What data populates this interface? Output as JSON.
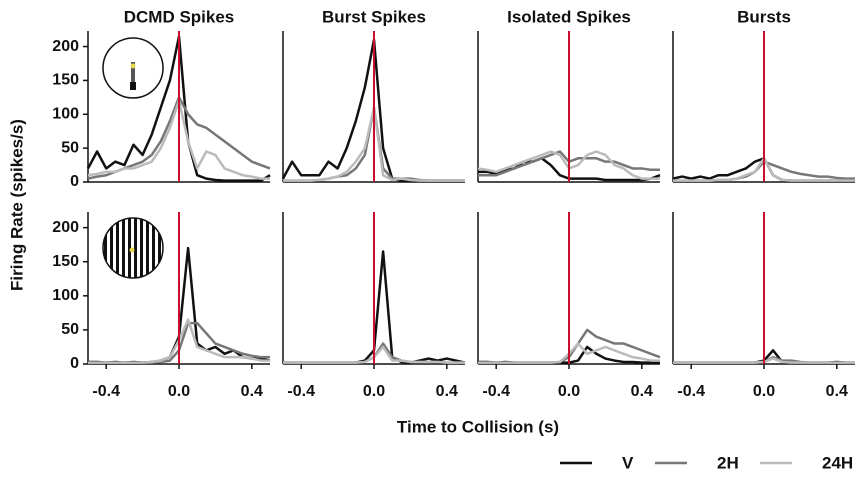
{
  "figure": {
    "ylabel": "Firing Rate (spikes/s)",
    "xlabel": "Time to Collision (s)"
  },
  "chart_data": [
    {
      "type": "line",
      "title": "DCMD Spikes",
      "x": [
        -0.5,
        -0.45,
        -0.4,
        -0.35,
        -0.3,
        -0.25,
        -0.2,
        -0.15,
        -0.1,
        -0.05,
        0,
        0.05,
        0.1,
        0.15,
        0.2,
        0.25,
        0.3,
        0.35,
        0.4,
        0.45,
        0.5
      ],
      "xlim": [
        -0.5,
        0.5
      ],
      "ylim": [
        0,
        220
      ],
      "yticks": [
        0,
        50,
        100,
        150,
        200
      ],
      "vline": 0,
      "vline_color": "#c8102e",
      "series": [
        {
          "name": "V",
          "color": "#111111",
          "values": [
            20,
            45,
            20,
            30,
            25,
            55,
            40,
            70,
            110,
            150,
            215,
            60,
            10,
            5,
            3,
            2,
            2,
            2,
            2,
            2,
            10
          ]
        },
        {
          "name": "2H",
          "color": "#777777",
          "values": [
            5,
            8,
            10,
            15,
            20,
            25,
            30,
            40,
            60,
            90,
            125,
            100,
            85,
            80,
            70,
            60,
            50,
            40,
            30,
            25,
            20
          ]
        },
        {
          "name": "24H",
          "color": "#bbbbbb",
          "values": [
            10,
            12,
            15,
            15,
            20,
            20,
            25,
            30,
            50,
            80,
            120,
            60,
            20,
            45,
            40,
            20,
            15,
            10,
            8,
            5,
            5
          ]
        }
      ]
    },
    {
      "type": "line",
      "title": "Burst Spikes",
      "x": [
        -0.5,
        -0.45,
        -0.4,
        -0.35,
        -0.3,
        -0.25,
        -0.2,
        -0.15,
        -0.1,
        -0.05,
        0,
        0.05,
        0.1,
        0.15,
        0.2,
        0.25,
        0.3,
        0.35,
        0.4,
        0.45,
        0.5
      ],
      "xlim": [
        -0.5,
        0.5
      ],
      "ylim": [
        0,
        220
      ],
      "vline": 0,
      "vline_color": "#c8102e",
      "series": [
        {
          "name": "V",
          "color": "#111111",
          "values": [
            5,
            30,
            10,
            10,
            10,
            30,
            20,
            50,
            90,
            140,
            210,
            50,
            5,
            2,
            2,
            2,
            2,
            2,
            2,
            2,
            2
          ]
        },
        {
          "name": "2H",
          "color": "#777777",
          "values": [
            2,
            2,
            2,
            2,
            3,
            5,
            8,
            10,
            20,
            40,
            110,
            20,
            5,
            5,
            5,
            3,
            2,
            2,
            2,
            2,
            2
          ]
        },
        {
          "name": "24H",
          "color": "#bbbbbb",
          "values": [
            2,
            2,
            2,
            2,
            3,
            5,
            8,
            15,
            30,
            50,
            110,
            10,
            3,
            5,
            3,
            2,
            2,
            2,
            2,
            2,
            2
          ]
        }
      ]
    },
    {
      "type": "line",
      "title": "Isolated Spikes",
      "x": [
        -0.5,
        -0.45,
        -0.4,
        -0.35,
        -0.3,
        -0.25,
        -0.2,
        -0.15,
        -0.1,
        -0.05,
        0,
        0.05,
        0.1,
        0.15,
        0.2,
        0.25,
        0.3,
        0.35,
        0.4,
        0.45,
        0.5
      ],
      "xlim": [
        -0.5,
        0.5
      ],
      "ylim": [
        0,
        220
      ],
      "vline": 0,
      "vline_color": "#c8102e",
      "series": [
        {
          "name": "V",
          "color": "#111111",
          "values": [
            15,
            15,
            12,
            18,
            20,
            30,
            30,
            35,
            25,
            10,
            5,
            5,
            5,
            5,
            3,
            3,
            3,
            3,
            3,
            5,
            10
          ]
        },
        {
          "name": "2H",
          "color": "#777777",
          "values": [
            10,
            10,
            10,
            15,
            20,
            25,
            30,
            35,
            40,
            45,
            30,
            35,
            35,
            35,
            30,
            30,
            25,
            20,
            20,
            18,
            18
          ]
        },
        {
          "name": "24H",
          "color": "#bbbbbb",
          "values": [
            20,
            18,
            15,
            20,
            25,
            30,
            35,
            40,
            45,
            40,
            20,
            25,
            40,
            45,
            40,
            25,
            20,
            10,
            5,
            5,
            5
          ]
        }
      ]
    },
    {
      "type": "line",
      "title": "Bursts",
      "x": [
        -0.5,
        -0.45,
        -0.4,
        -0.35,
        -0.3,
        -0.25,
        -0.2,
        -0.15,
        -0.1,
        -0.05,
        0,
        0.05,
        0.1,
        0.15,
        0.2,
        0.25,
        0.3,
        0.35,
        0.4,
        0.45,
        0.5
      ],
      "xlim": [
        -0.5,
        0.5
      ],
      "ylim": [
        0,
        220
      ],
      "vline": 0,
      "vline_color": "#c8102e",
      "series": [
        {
          "name": "V",
          "color": "#111111",
          "values": [
            5,
            8,
            5,
            8,
            5,
            10,
            10,
            15,
            20,
            30,
            35,
            10,
            3,
            2,
            2,
            2,
            2,
            2,
            2,
            2,
            2
          ]
        },
        {
          "name": "2H",
          "color": "#777777",
          "values": [
            2,
            2,
            2,
            2,
            2,
            3,
            3,
            5,
            8,
            15,
            30,
            25,
            20,
            15,
            12,
            10,
            8,
            8,
            6,
            5,
            5
          ]
        },
        {
          "name": "24H",
          "color": "#bbbbbb",
          "values": [
            2,
            2,
            2,
            2,
            2,
            3,
            3,
            5,
            10,
            15,
            35,
            10,
            3,
            2,
            2,
            2,
            2,
            2,
            2,
            2,
            2
          ]
        }
      ]
    },
    {
      "type": "line",
      "x": [
        -0.5,
        -0.45,
        -0.4,
        -0.35,
        -0.3,
        -0.25,
        -0.2,
        -0.15,
        -0.1,
        -0.05,
        0,
        0.05,
        0.1,
        0.15,
        0.2,
        0.25,
        0.3,
        0.35,
        0.4,
        0.45,
        0.5
      ],
      "xlim": [
        -0.5,
        0.5
      ],
      "ylim": [
        0,
        220
      ],
      "yticks": [
        0,
        50,
        100,
        150,
        200
      ],
      "xticks": [
        -0.4,
        {
          "value": 0,
          "label": "0.0"
        },
        0.4
      ],
      "vline": 0,
      "vline_color": "#c8102e",
      "series": [
        {
          "name": "V",
          "color": "#111111",
          "values": [
            3,
            3,
            2,
            3,
            2,
            3,
            2,
            3,
            5,
            10,
            40,
            170,
            30,
            20,
            25,
            15,
            20,
            10,
            8,
            8,
            5
          ]
        },
        {
          "name": "2H",
          "color": "#777777",
          "values": [
            2,
            2,
            2,
            2,
            2,
            2,
            2,
            2,
            3,
            5,
            20,
            60,
            60,
            45,
            30,
            25,
            20,
            15,
            12,
            10,
            10
          ]
        },
        {
          "name": "24H",
          "color": "#bbbbbb",
          "values": [
            2,
            2,
            2,
            2,
            2,
            2,
            2,
            3,
            5,
            10,
            35,
            65,
            25,
            20,
            15,
            10,
            10,
            10,
            8,
            5,
            5
          ]
        }
      ]
    },
    {
      "type": "line",
      "x": [
        -0.5,
        -0.45,
        -0.4,
        -0.35,
        -0.3,
        -0.25,
        -0.2,
        -0.15,
        -0.1,
        -0.05,
        0,
        0.05,
        0.1,
        0.15,
        0.2,
        0.25,
        0.3,
        0.35,
        0.4,
        0.45,
        0.5
      ],
      "xlim": [
        -0.5,
        0.5
      ],
      "ylim": [
        0,
        220
      ],
      "xticks": [
        -0.4,
        {
          "value": 0,
          "label": "0.0"
        },
        0.4
      ],
      "vline": 0,
      "vline_color": "#c8102e",
      "series": [
        {
          "name": "V",
          "color": "#111111",
          "values": [
            2,
            2,
            2,
            2,
            2,
            2,
            2,
            2,
            2,
            5,
            20,
            165,
            10,
            3,
            2,
            5,
            8,
            5,
            8,
            5,
            2
          ]
        },
        {
          "name": "2H",
          "color": "#777777",
          "values": [
            2,
            2,
            2,
            2,
            2,
            2,
            2,
            2,
            2,
            3,
            10,
            30,
            10,
            5,
            3,
            3,
            3,
            3,
            2,
            2,
            2
          ]
        },
        {
          "name": "24H",
          "color": "#bbbbbb",
          "values": [
            2,
            2,
            2,
            2,
            2,
            2,
            2,
            2,
            2,
            3,
            10,
            25,
            5,
            5,
            3,
            3,
            3,
            3,
            2,
            2,
            2
          ]
        }
      ]
    },
    {
      "type": "line",
      "x": [
        -0.5,
        -0.45,
        -0.4,
        -0.35,
        -0.3,
        -0.25,
        -0.2,
        -0.15,
        -0.1,
        -0.05,
        0,
        0.05,
        0.1,
        0.15,
        0.2,
        0.25,
        0.3,
        0.35,
        0.4,
        0.45,
        0.5
      ],
      "xlim": [
        -0.5,
        0.5
      ],
      "ylim": [
        0,
        220
      ],
      "xticks": [
        -0.4,
        {
          "value": 0,
          "label": "0.0"
        },
        0.4
      ],
      "vline": 0,
      "vline_color": "#c8102e",
      "series": [
        {
          "name": "V",
          "color": "#111111",
          "values": [
            3,
            3,
            2,
            3,
            2,
            2,
            2,
            2,
            2,
            2,
            2,
            5,
            25,
            15,
            8,
            5,
            3,
            3,
            2,
            2,
            2
          ]
        },
        {
          "name": "2H",
          "color": "#777777",
          "values": [
            2,
            2,
            2,
            2,
            2,
            2,
            2,
            2,
            2,
            3,
            10,
            30,
            50,
            40,
            35,
            30,
            30,
            25,
            20,
            15,
            10
          ]
        },
        {
          "name": "24H",
          "color": "#bbbbbb",
          "values": [
            2,
            2,
            2,
            2,
            2,
            2,
            2,
            2,
            2,
            3,
            15,
            30,
            15,
            20,
            25,
            20,
            15,
            10,
            8,
            5,
            5
          ]
        }
      ]
    },
    {
      "type": "line",
      "x": [
        -0.5,
        -0.45,
        -0.4,
        -0.35,
        -0.3,
        -0.25,
        -0.2,
        -0.15,
        -0.1,
        -0.05,
        0,
        0.05,
        0.1,
        0.15,
        0.2,
        0.25,
        0.3,
        0.35,
        0.4,
        0.45,
        0.5
      ],
      "xlim": [
        -0.5,
        0.5
      ],
      "ylim": [
        0,
        220
      ],
      "xticks": [
        -0.4,
        {
          "value": 0,
          "label": "0.0"
        },
        0.4
      ],
      "vline": 0,
      "vline_color": "#c8102e",
      "series": [
        {
          "name": "V",
          "color": "#111111",
          "values": [
            2,
            2,
            2,
            2,
            2,
            2,
            2,
            2,
            2,
            2,
            5,
            20,
            3,
            2,
            2,
            2,
            2,
            2,
            3,
            2,
            2
          ]
        },
        {
          "name": "2H",
          "color": "#777777",
          "values": [
            2,
            2,
            2,
            2,
            2,
            2,
            2,
            2,
            2,
            2,
            3,
            10,
            5,
            5,
            3,
            2,
            2,
            2,
            2,
            2,
            2
          ]
        },
        {
          "name": "24H",
          "color": "#bbbbbb",
          "values": [
            2,
            2,
            2,
            2,
            2,
            2,
            2,
            2,
            2,
            2,
            3,
            8,
            3,
            2,
            2,
            2,
            2,
            2,
            2,
            2,
            2
          ]
        }
      ]
    }
  ]
}
